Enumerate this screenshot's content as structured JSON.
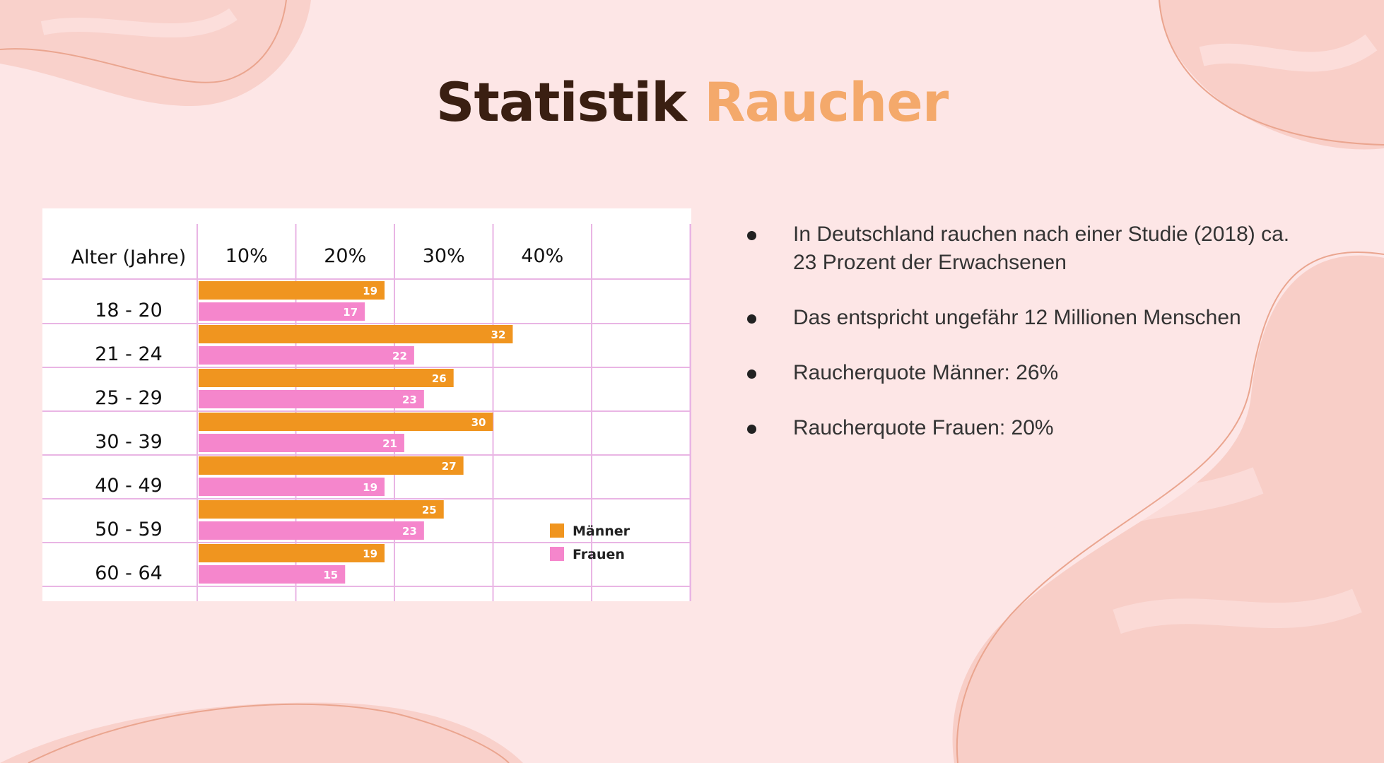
{
  "title": {
    "part1": "Statistik",
    "part2": "Raucher"
  },
  "bullets": [
    "In Deutschland rauchen nach einer Studie (2018) ca. 23 Prozent der Erwachsenen",
    "Das entspricht ungefähr 12 Millionen Menschen",
    "Raucherquote Männer: 26%",
    "Raucherquote Frauen: 20%"
  ],
  "colors": {
    "background": "#fde6e6",
    "accent": "#f4a96b",
    "title_dark": "#3a1f12",
    "maenner": "#f0951f",
    "frauen": "#f586cc",
    "grid": "#e9b5e4"
  },
  "chart_data": {
    "type": "bar",
    "orientation": "horizontal",
    "header_label": "Alter (Jahre)",
    "categories": [
      "18 - 20",
      "21 - 24",
      "25 - 29",
      "30 - 39",
      "40 - 49",
      "50 - 59",
      "60 - 64"
    ],
    "x_ticks": [
      "10%",
      "20%",
      "30%",
      "40%"
    ],
    "xlim": [
      0,
      50
    ],
    "series": [
      {
        "name": "Männer",
        "color": "#f0951f",
        "values": [
          19,
          32,
          26,
          30,
          27,
          25,
          19
        ]
      },
      {
        "name": "Frauen",
        "color": "#f586cc",
        "values": [
          17,
          22,
          23,
          21,
          19,
          23,
          15
        ]
      }
    ],
    "legend": "bottom-right",
    "grid": true
  }
}
